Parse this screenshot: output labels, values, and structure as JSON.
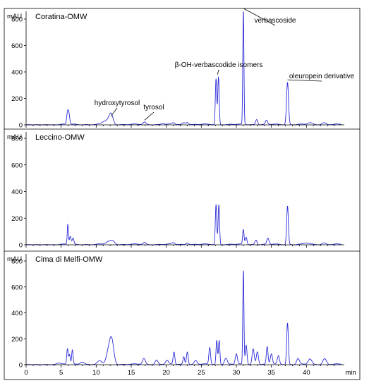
{
  "chart_data": [
    {
      "type": "line",
      "title": "Coratina-OMW",
      "ylabel": "mAU",
      "xlabel": "min",
      "xlim": [
        0,
        45
      ],
      "ylim": [
        0,
        900
      ],
      "yticks": [
        0,
        200,
        400,
        600,
        800
      ],
      "xticks": [
        0,
        5,
        10,
        15,
        20,
        25,
        30,
        35,
        40
      ],
      "series_color": "#2b2bd8",
      "peaks": [
        {
          "x": 5.9,
          "y": 80,
          "w": 0.12
        },
        {
          "x": 6.1,
          "y": 78,
          "w": 0.12
        },
        {
          "x": 11.3,
          "y": 25,
          "w": 0.4
        },
        {
          "x": 12.0,
          "y": 48,
          "w": 0.3
        },
        {
          "x": 12.2,
          "y": 40,
          "w": 0.25
        },
        {
          "x": 16.9,
          "y": 18,
          "w": 0.2
        },
        {
          "x": 19.5,
          "y": 10,
          "w": 0.2
        },
        {
          "x": 21.0,
          "y": 12,
          "w": 0.2
        },
        {
          "x": 22.5,
          "y": 14,
          "w": 0.2
        },
        {
          "x": 23.0,
          "y": 18,
          "w": 0.2
        },
        {
          "x": 27.1,
          "y": 345,
          "w": 0.1
        },
        {
          "x": 27.45,
          "y": 360,
          "w": 0.1
        },
        {
          "x": 31.0,
          "y": 865,
          "w": 0.08
        },
        {
          "x": 32.9,
          "y": 40,
          "w": 0.15
        },
        {
          "x": 34.3,
          "y": 30,
          "w": 0.15
        },
        {
          "x": 37.3,
          "y": 320,
          "w": 0.14
        },
        {
          "x": 40.5,
          "y": 12,
          "w": 0.3
        },
        {
          "x": 42.5,
          "y": 14,
          "w": 0.3
        }
      ],
      "annotations": [
        {
          "label": "hydroxytyrosol",
          "x": 12.1,
          "y": 55
        },
        {
          "label": "tyrosol",
          "x": 16.9,
          "y": 25
        },
        {
          "label": "β-OH-verbascodide isomers",
          "x": 27.3,
          "y": 370
        },
        {
          "label": "verbascoside",
          "x": 31.0,
          "y": 870
        },
        {
          "label": "oleuropein derivative",
          "x": 37.3,
          "y": 330
        }
      ]
    },
    {
      "type": "line",
      "title": "Leccino-OMW",
      "ylabel": "mAU",
      "xlabel": "min",
      "xlim": [
        0,
        45
      ],
      "ylim": [
        0,
        900
      ],
      "yticks": [
        0,
        200,
        400,
        600,
        800
      ],
      "xticks": [
        0,
        5,
        10,
        15,
        20,
        25,
        30,
        35,
        40
      ],
      "series_color": "#2b2bd8",
      "peaks": [
        {
          "x": 5.95,
          "y": 150,
          "w": 0.08
        },
        {
          "x": 6.3,
          "y": 60,
          "w": 0.12
        },
        {
          "x": 6.7,
          "y": 45,
          "w": 0.12
        },
        {
          "x": 11.8,
          "y": 20,
          "w": 0.4
        },
        {
          "x": 12.4,
          "y": 22,
          "w": 0.3
        },
        {
          "x": 16.9,
          "y": 14,
          "w": 0.2
        },
        {
          "x": 21.0,
          "y": 12,
          "w": 0.2
        },
        {
          "x": 23.0,
          "y": 14,
          "w": 0.2
        },
        {
          "x": 27.1,
          "y": 300,
          "w": 0.1
        },
        {
          "x": 27.5,
          "y": 300,
          "w": 0.1
        },
        {
          "x": 31.0,
          "y": 110,
          "w": 0.1
        },
        {
          "x": 31.4,
          "y": 55,
          "w": 0.12
        },
        {
          "x": 32.8,
          "y": 35,
          "w": 0.15
        },
        {
          "x": 34.5,
          "y": 45,
          "w": 0.15
        },
        {
          "x": 37.3,
          "y": 290,
          "w": 0.12
        },
        {
          "x": 40.0,
          "y": 10,
          "w": 0.3
        },
        {
          "x": 42.5,
          "y": 12,
          "w": 0.3
        }
      ],
      "annotations": []
    },
    {
      "type": "line",
      "title": "Cima di Melfi-OMW",
      "ylabel": "mAU",
      "xlabel": "min",
      "xlim": [
        0,
        45
      ],
      "ylim": [
        0,
        900
      ],
      "yticks": [
        0,
        200,
        400,
        600,
        800
      ],
      "xticks": [
        0,
        5,
        10,
        15,
        20,
        25,
        30,
        35,
        40
      ],
      "series_color": "#2b2bd8",
      "peaks": [
        {
          "x": 4.6,
          "y": 12,
          "w": 0.3
        },
        {
          "x": 5.9,
          "y": 120,
          "w": 0.1
        },
        {
          "x": 6.2,
          "y": 75,
          "w": 0.1
        },
        {
          "x": 6.6,
          "y": 110,
          "w": 0.1
        },
        {
          "x": 8.0,
          "y": 20,
          "w": 0.3
        },
        {
          "x": 10.5,
          "y": 25,
          "w": 0.3
        },
        {
          "x": 11.7,
          "y": 80,
          "w": 0.3
        },
        {
          "x": 12.2,
          "y": 190,
          "w": 0.3
        },
        {
          "x": 16.8,
          "y": 45,
          "w": 0.2
        },
        {
          "x": 18.6,
          "y": 35,
          "w": 0.2
        },
        {
          "x": 20.1,
          "y": 30,
          "w": 0.2
        },
        {
          "x": 21.1,
          "y": 95,
          "w": 0.12
        },
        {
          "x": 22.5,
          "y": 60,
          "w": 0.12
        },
        {
          "x": 23.0,
          "y": 100,
          "w": 0.12
        },
        {
          "x": 24.2,
          "y": 30,
          "w": 0.2
        },
        {
          "x": 26.2,
          "y": 130,
          "w": 0.12
        },
        {
          "x": 27.2,
          "y": 185,
          "w": 0.1
        },
        {
          "x": 27.55,
          "y": 185,
          "w": 0.1
        },
        {
          "x": 28.5,
          "y": 50,
          "w": 0.2
        },
        {
          "x": 30.0,
          "y": 80,
          "w": 0.15
        },
        {
          "x": 31.0,
          "y": 730,
          "w": 0.08
        },
        {
          "x": 31.4,
          "y": 150,
          "w": 0.12
        },
        {
          "x": 32.4,
          "y": 120,
          "w": 0.15
        },
        {
          "x": 33.0,
          "y": 100,
          "w": 0.15
        },
        {
          "x": 34.4,
          "y": 135,
          "w": 0.12
        },
        {
          "x": 35.0,
          "y": 80,
          "w": 0.15
        },
        {
          "x": 36.0,
          "y": 65,
          "w": 0.15
        },
        {
          "x": 37.3,
          "y": 320,
          "w": 0.12
        },
        {
          "x": 38.8,
          "y": 45,
          "w": 0.2
        },
        {
          "x": 40.5,
          "y": 40,
          "w": 0.25
        },
        {
          "x": 42.6,
          "y": 45,
          "w": 0.25
        }
      ],
      "annotations": []
    }
  ]
}
